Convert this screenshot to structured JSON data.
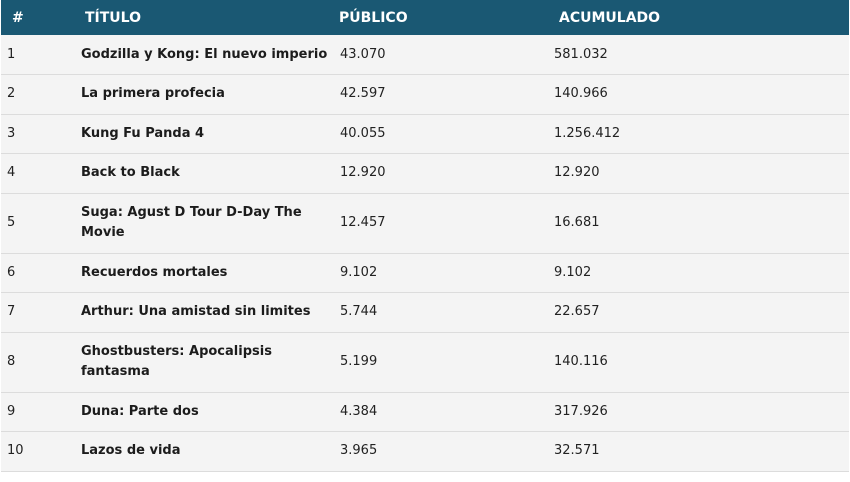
{
  "header": {
    "rank": "#",
    "title": "TÍTULO",
    "public": "PÚBLICO",
    "accumulated": "ACUMULADO"
  },
  "rows": [
    {
      "rank": "1",
      "title": "Godzilla y Kong: El nuevo imperio",
      "public": "43.070",
      "accumulated": "581.032"
    },
    {
      "rank": "2",
      "title": "La primera profecia",
      "public": "42.597",
      "accumulated": "140.966"
    },
    {
      "rank": "3",
      "title": "Kung Fu Panda 4",
      "public": "40.055",
      "accumulated": "1.256.412"
    },
    {
      "rank": "4",
      "title": "Back to Black",
      "public": "12.920",
      "accumulated": "12.920"
    },
    {
      "rank": "5",
      "title": "Suga: Agust D Tour D-Day The Movie",
      "public": "12.457",
      "accumulated": "16.681"
    },
    {
      "rank": "6",
      "title": "Recuerdos mortales",
      "public": "9.102",
      "accumulated": "9.102"
    },
    {
      "rank": "7",
      "title": "Arthur: Una amistad sin limites",
      "public": "5.744",
      "accumulated": "22.657"
    },
    {
      "rank": "8",
      "title": "Ghostbusters: Apocalipsis fantasma",
      "public": "5.199",
      "accumulated": "140.116"
    },
    {
      "rank": "9",
      "title": "Duna: Parte dos",
      "public": "4.384",
      "accumulated": "317.926"
    },
    {
      "rank": "10",
      "title": "Lazos de vida",
      "public": "3.965",
      "accumulated": "32.571"
    }
  ]
}
